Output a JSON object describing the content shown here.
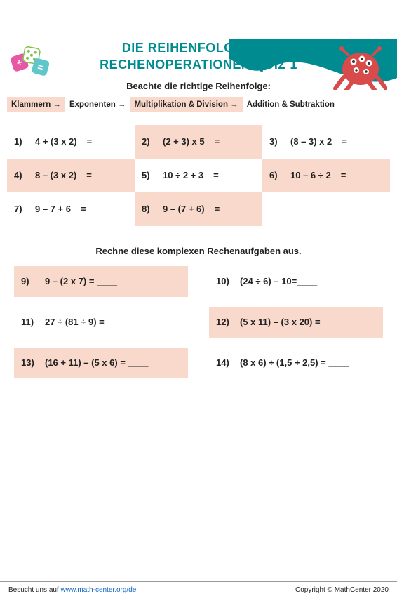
{
  "colors": {
    "accent": "#008b91",
    "highlight": "#f8d9cb",
    "wave": "#008b91",
    "monster": "#d94a4a",
    "link": "#1266c4"
  },
  "title_line1": "DIE REIHENFOLGE VON",
  "title_line2": "RECHENOPERATIONEN QUIZ 1",
  "subtitle": "Beachte die richtige Reihenfolge:",
  "rules": [
    "Klammern →",
    "Exponenten →",
    "Multiplikation & Division →",
    "Addition & Subtraktion"
  ],
  "grid1": [
    {
      "n": "1)",
      "expr": "4 + (3 x 2)",
      "hl": false
    },
    {
      "n": "2)",
      "expr": "(2 + 3) x 5",
      "hl": true
    },
    {
      "n": "3)",
      "expr": "(8 – 3) x 2",
      "hl": false
    },
    {
      "n": "4)",
      "expr": "8 – (3 x 2)",
      "hl": true
    },
    {
      "n": "5)",
      "expr": "10 ÷ 2 + 3",
      "hl": false
    },
    {
      "n": "6)",
      "expr": "10 – 6 ÷ 2",
      "hl": true
    },
    {
      "n": "7)",
      "expr": "9 – 7 + 6",
      "hl": false
    },
    {
      "n": "8)",
      "expr": "9 – (7 + 6)",
      "hl": true
    }
  ],
  "mid": "Rechne diese komplexen Rechenaufgaben aus.",
  "grid2": [
    {
      "n": "9)",
      "expr": "9 – (2 x 7) = ____",
      "hl": true
    },
    {
      "n": "10)",
      "expr": "(24 ÷ 6) – 10=____",
      "hl": false
    },
    {
      "n": "11)",
      "expr": "27 ÷ (81 ÷ 9) = ____",
      "hl": false
    },
    {
      "n": "12)",
      "expr": "(5 x 11) – (3 x 20) = ____",
      "hl": true
    },
    {
      "n": "13)",
      "expr": "(16 + 11) – (5 x 6) = ____",
      "hl": true
    },
    {
      "n": "14)",
      "expr": "(8 x 6) ÷ (1,5 + 2,5) = ____",
      "hl": false
    }
  ],
  "footer": {
    "visit_pre": "Besucht uns auf ",
    "link_text": "www.math-center.org/de",
    "link_href": "https://www.math-center.org/de",
    "copyright": "Copyright © MathCenter 2020"
  }
}
